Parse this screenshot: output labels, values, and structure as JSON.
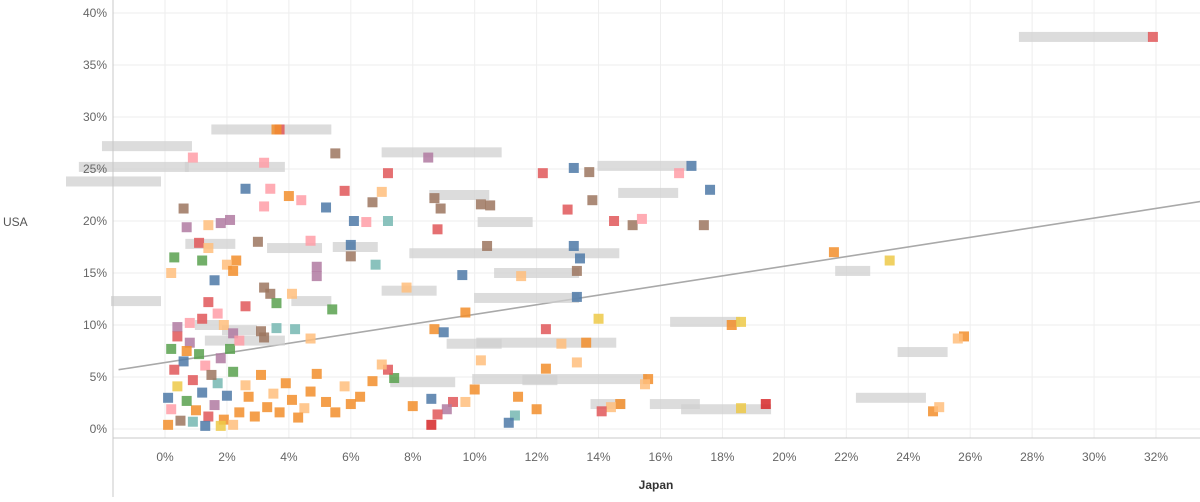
{
  "chart_data": {
    "type": "scatter",
    "xlabel": "Japan",
    "ylabel": "USA",
    "xlim": [
      -0.015,
      0.335
    ],
    "ylim": [
      -0.01,
      0.405
    ],
    "x_ticks": [
      "0%",
      "2%",
      "4%",
      "6%",
      "8%",
      "10%",
      "12%",
      "14%",
      "16%",
      "18%",
      "20%",
      "22%",
      "24%",
      "26%",
      "28%",
      "30%",
      "32%"
    ],
    "y_ticks": [
      "0%",
      "5%",
      "10%",
      "15%",
      "20%",
      "25%",
      "30%",
      "35%",
      "40%"
    ],
    "grid": true,
    "trend_line": {
      "from": [
        -0.015,
        0.057
      ],
      "to": [
        0.335,
        0.219
      ]
    },
    "colors": {
      "blue": "#4e79a7",
      "orange": "#f28e2b",
      "red": "#e15759",
      "teal": "#76b7b2",
      "green": "#59a14f",
      "yellow": "#edc948",
      "purple": "#b07aa1",
      "pink": "#ff9da7",
      "brown": "#9c755f",
      "tan": "#bab0ac",
      "deep_red": "#d62728",
      "light_orange": "#ffbe7d"
    },
    "points": [
      {
        "x": 0.319,
        "y": 0.377,
        "c": "red"
      },
      {
        "x": 0.037,
        "y": 0.288,
        "c": "red"
      },
      {
        "x": 0.036,
        "y": 0.288,
        "c": "orange"
      },
      {
        "x": 0.009,
        "y": 0.261,
        "c": "pink"
      },
      {
        "x": 0.032,
        "y": 0.256,
        "c": "pink"
      },
      {
        "x": 0.055,
        "y": 0.265,
        "c": "brown"
      },
      {
        "x": 0.085,
        "y": 0.261,
        "c": "purple"
      },
      {
        "x": 0.122,
        "y": 0.246,
        "c": "red"
      },
      {
        "x": 0.132,
        "y": 0.251,
        "c": "blue"
      },
      {
        "x": 0.137,
        "y": 0.247,
        "c": "brown"
      },
      {
        "x": 0.17,
        "y": 0.253,
        "c": "blue"
      },
      {
        "x": 0.166,
        "y": 0.246,
        "c": "pink"
      },
      {
        "x": 0.176,
        "y": 0.23,
        "c": "blue"
      },
      {
        "x": 0.072,
        "y": 0.246,
        "c": "red"
      },
      {
        "x": 0.058,
        "y": 0.229,
        "c": "red"
      },
      {
        "x": 0.026,
        "y": 0.231,
        "c": "blue"
      },
      {
        "x": 0.034,
        "y": 0.231,
        "c": "pink"
      },
      {
        "x": 0.04,
        "y": 0.224,
        "c": "orange"
      },
      {
        "x": 0.044,
        "y": 0.22,
        "c": "pink"
      },
      {
        "x": 0.006,
        "y": 0.212,
        "c": "brown"
      },
      {
        "x": 0.032,
        "y": 0.214,
        "c": "pink"
      },
      {
        "x": 0.067,
        "y": 0.218,
        "c": "brown"
      },
      {
        "x": 0.07,
        "y": 0.228,
        "c": "light_orange"
      },
      {
        "x": 0.087,
        "y": 0.222,
        "c": "brown"
      },
      {
        "x": 0.089,
        "y": 0.212,
        "c": "brown"
      },
      {
        "x": 0.102,
        "y": 0.216,
        "c": "brown"
      },
      {
        "x": 0.105,
        "y": 0.215,
        "c": "brown"
      },
      {
        "x": 0.13,
        "y": 0.211,
        "c": "red"
      },
      {
        "x": 0.138,
        "y": 0.22,
        "c": "brown"
      },
      {
        "x": 0.145,
        "y": 0.2,
        "c": "red"
      },
      {
        "x": 0.151,
        "y": 0.196,
        "c": "brown"
      },
      {
        "x": 0.154,
        "y": 0.202,
        "c": "pink"
      },
      {
        "x": 0.174,
        "y": 0.196,
        "c": "brown"
      },
      {
        "x": 0.052,
        "y": 0.213,
        "c": "blue"
      },
      {
        "x": 0.061,
        "y": 0.2,
        "c": "blue"
      },
      {
        "x": 0.065,
        "y": 0.199,
        "c": "pink"
      },
      {
        "x": 0.072,
        "y": 0.2,
        "c": "teal"
      },
      {
        "x": 0.088,
        "y": 0.192,
        "c": "red"
      },
      {
        "x": 0.014,
        "y": 0.196,
        "c": "light_orange"
      },
      {
        "x": 0.018,
        "y": 0.198,
        "c": "purple"
      },
      {
        "x": 0.007,
        "y": 0.194,
        "c": "purple"
      },
      {
        "x": 0.021,
        "y": 0.201,
        "c": "purple"
      },
      {
        "x": 0.03,
        "y": 0.18,
        "c": "brown"
      },
      {
        "x": 0.047,
        "y": 0.181,
        "c": "pink"
      },
      {
        "x": 0.06,
        "y": 0.177,
        "c": "blue"
      },
      {
        "x": 0.06,
        "y": 0.166,
        "c": "brown"
      },
      {
        "x": 0.011,
        "y": 0.179,
        "c": "red"
      },
      {
        "x": 0.014,
        "y": 0.174,
        "c": "light_orange"
      },
      {
        "x": 0.003,
        "y": 0.165,
        "c": "green"
      },
      {
        "x": 0.012,
        "y": 0.162,
        "c": "green"
      },
      {
        "x": 0.023,
        "y": 0.162,
        "c": "orange"
      },
      {
        "x": 0.02,
        "y": 0.158,
        "c": "light_orange"
      },
      {
        "x": 0.022,
        "y": 0.152,
        "c": "orange"
      },
      {
        "x": 0.002,
        "y": 0.15,
        "c": "light_orange"
      },
      {
        "x": 0.016,
        "y": 0.143,
        "c": "blue"
      },
      {
        "x": 0.068,
        "y": 0.158,
        "c": "teal"
      },
      {
        "x": 0.049,
        "y": 0.156,
        "c": "purple"
      },
      {
        "x": 0.049,
        "y": 0.147,
        "c": "purple"
      },
      {
        "x": 0.104,
        "y": 0.176,
        "c": "brown"
      },
      {
        "x": 0.132,
        "y": 0.176,
        "c": "blue"
      },
      {
        "x": 0.134,
        "y": 0.164,
        "c": "blue"
      },
      {
        "x": 0.133,
        "y": 0.152,
        "c": "brown"
      },
      {
        "x": 0.133,
        "y": 0.127,
        "c": "blue"
      },
      {
        "x": 0.115,
        "y": 0.147,
        "c": "light_orange"
      },
      {
        "x": 0.096,
        "y": 0.148,
        "c": "blue"
      },
      {
        "x": 0.032,
        "y": 0.136,
        "c": "brown"
      },
      {
        "x": 0.034,
        "y": 0.13,
        "c": "brown"
      },
      {
        "x": 0.041,
        "y": 0.13,
        "c": "light_orange"
      },
      {
        "x": 0.036,
        "y": 0.121,
        "c": "green"
      },
      {
        "x": 0.054,
        "y": 0.115,
        "c": "green"
      },
      {
        "x": 0.078,
        "y": 0.136,
        "c": "light_orange"
      },
      {
        "x": 0.026,
        "y": 0.118,
        "c": "red"
      },
      {
        "x": 0.014,
        "y": 0.122,
        "c": "red"
      },
      {
        "x": 0.017,
        "y": 0.111,
        "c": "pink"
      },
      {
        "x": 0.012,
        "y": 0.106,
        "c": "red"
      },
      {
        "x": 0.008,
        "y": 0.102,
        "c": "pink"
      },
      {
        "x": 0.004,
        "y": 0.098,
        "c": "purple"
      },
      {
        "x": 0.019,
        "y": 0.1,
        "c": "light_orange"
      },
      {
        "x": 0.022,
        "y": 0.092,
        "c": "purple"
      },
      {
        "x": 0.031,
        "y": 0.094,
        "c": "brown"
      },
      {
        "x": 0.036,
        "y": 0.097,
        "c": "teal"
      },
      {
        "x": 0.042,
        "y": 0.096,
        "c": "teal"
      },
      {
        "x": 0.032,
        "y": 0.088,
        "c": "brown"
      },
      {
        "x": 0.047,
        "y": 0.087,
        "c": "light_orange"
      },
      {
        "x": 0.097,
        "y": 0.112,
        "c": "orange"
      },
      {
        "x": 0.087,
        "y": 0.096,
        "c": "orange"
      },
      {
        "x": 0.09,
        "y": 0.093,
        "c": "blue"
      },
      {
        "x": 0.123,
        "y": 0.096,
        "c": "red"
      },
      {
        "x": 0.14,
        "y": 0.106,
        "c": "yellow"
      },
      {
        "x": 0.183,
        "y": 0.1,
        "c": "orange"
      },
      {
        "x": 0.186,
        "y": 0.103,
        "c": "yellow"
      },
      {
        "x": 0.216,
        "y": 0.17,
        "c": "orange"
      },
      {
        "x": 0.234,
        "y": 0.162,
        "c": "yellow"
      },
      {
        "x": 0.258,
        "y": 0.089,
        "c": "orange"
      },
      {
        "x": 0.256,
        "y": 0.087,
        "c": "light_orange"
      },
      {
        "x": 0.248,
        "y": 0.017,
        "c": "orange"
      },
      {
        "x": 0.25,
        "y": 0.021,
        "c": "light_orange"
      },
      {
        "x": 0.194,
        "y": 0.024,
        "c": "deep_red"
      },
      {
        "x": 0.186,
        "y": 0.02,
        "c": "yellow"
      },
      {
        "x": 0.156,
        "y": 0.048,
        "c": "orange"
      },
      {
        "x": 0.155,
        "y": 0.043,
        "c": "light_orange"
      },
      {
        "x": 0.147,
        "y": 0.024,
        "c": "orange"
      },
      {
        "x": 0.144,
        "y": 0.021,
        "c": "light_orange"
      },
      {
        "x": 0.141,
        "y": 0.017,
        "c": "red"
      },
      {
        "x": 0.133,
        "y": 0.064,
        "c": "light_orange"
      },
      {
        "x": 0.136,
        "y": 0.083,
        "c": "orange"
      },
      {
        "x": 0.128,
        "y": 0.082,
        "c": "light_orange"
      },
      {
        "x": 0.123,
        "y": 0.058,
        "c": "orange"
      },
      {
        "x": 0.12,
        "y": 0.019,
        "c": "orange"
      },
      {
        "x": 0.114,
        "y": 0.031,
        "c": "orange"
      },
      {
        "x": 0.113,
        "y": 0.013,
        "c": "teal"
      },
      {
        "x": 0.111,
        "y": 0.006,
        "c": "blue"
      },
      {
        "x": 0.102,
        "y": 0.066,
        "c": "light_orange"
      },
      {
        "x": 0.1,
        "y": 0.038,
        "c": "orange"
      },
      {
        "x": 0.097,
        "y": 0.026,
        "c": "light_orange"
      },
      {
        "x": 0.093,
        "y": 0.026,
        "c": "red"
      },
      {
        "x": 0.091,
        "y": 0.019,
        "c": "purple"
      },
      {
        "x": 0.088,
        "y": 0.014,
        "c": "red"
      },
      {
        "x": 0.086,
        "y": 0.004,
        "c": "deep_red"
      },
      {
        "x": 0.086,
        "y": 0.029,
        "c": "blue"
      },
      {
        "x": 0.08,
        "y": 0.022,
        "c": "orange"
      },
      {
        "x": 0.074,
        "y": 0.049,
        "c": "green"
      },
      {
        "x": 0.072,
        "y": 0.057,
        "c": "red"
      },
      {
        "x": 0.07,
        "y": 0.062,
        "c": "light_orange"
      },
      {
        "x": 0.067,
        "y": 0.046,
        "c": "orange"
      },
      {
        "x": 0.063,
        "y": 0.031,
        "c": "orange"
      },
      {
        "x": 0.06,
        "y": 0.024,
        "c": "orange"
      },
      {
        "x": 0.058,
        "y": 0.041,
        "c": "light_orange"
      },
      {
        "x": 0.055,
        "y": 0.016,
        "c": "orange"
      },
      {
        "x": 0.052,
        "y": 0.026,
        "c": "orange"
      },
      {
        "x": 0.049,
        "y": 0.053,
        "c": "orange"
      },
      {
        "x": 0.047,
        "y": 0.036,
        "c": "orange"
      },
      {
        "x": 0.045,
        "y": 0.02,
        "c": "light_orange"
      },
      {
        "x": 0.043,
        "y": 0.011,
        "c": "orange"
      },
      {
        "x": 0.041,
        "y": 0.028,
        "c": "orange"
      },
      {
        "x": 0.039,
        "y": 0.044,
        "c": "orange"
      },
      {
        "x": 0.037,
        "y": 0.016,
        "c": "orange"
      },
      {
        "x": 0.035,
        "y": 0.034,
        "c": "light_orange"
      },
      {
        "x": 0.033,
        "y": 0.021,
        "c": "orange"
      },
      {
        "x": 0.031,
        "y": 0.052,
        "c": "orange"
      },
      {
        "x": 0.029,
        "y": 0.012,
        "c": "orange"
      },
      {
        "x": 0.027,
        "y": 0.031,
        "c": "orange"
      },
      {
        "x": 0.026,
        "y": 0.042,
        "c": "light_orange"
      },
      {
        "x": 0.024,
        "y": 0.016,
        "c": "orange"
      },
      {
        "x": 0.022,
        "y": 0.055,
        "c": "green"
      },
      {
        "x": 0.02,
        "y": 0.032,
        "c": "blue"
      },
      {
        "x": 0.019,
        "y": 0.009,
        "c": "orange"
      },
      {
        "x": 0.017,
        "y": 0.044,
        "c": "teal"
      },
      {
        "x": 0.016,
        "y": 0.023,
        "c": "purple"
      },
      {
        "x": 0.014,
        "y": 0.012,
        "c": "red"
      },
      {
        "x": 0.013,
        "y": 0.061,
        "c": "pink"
      },
      {
        "x": 0.012,
        "y": 0.035,
        "c": "blue"
      },
      {
        "x": 0.011,
        "y": 0.072,
        "c": "green"
      },
      {
        "x": 0.01,
        "y": 0.018,
        "c": "orange"
      },
      {
        "x": 0.009,
        "y": 0.047,
        "c": "red"
      },
      {
        "x": 0.008,
        "y": 0.083,
        "c": "purple"
      },
      {
        "x": 0.007,
        "y": 0.027,
        "c": "green"
      },
      {
        "x": 0.006,
        "y": 0.065,
        "c": "blue"
      },
      {
        "x": 0.005,
        "y": 0.008,
        "c": "brown"
      },
      {
        "x": 0.004,
        "y": 0.041,
        "c": "yellow"
      },
      {
        "x": 0.003,
        "y": 0.057,
        "c": "red"
      },
      {
        "x": 0.002,
        "y": 0.019,
        "c": "pink"
      },
      {
        "x": 0.002,
        "y": 0.077,
        "c": "green"
      },
      {
        "x": 0.001,
        "y": 0.03,
        "c": "blue"
      },
      {
        "x": 0.001,
        "y": 0.004,
        "c": "orange"
      },
      {
        "x": 0.013,
        "y": 0.003,
        "c": "blue"
      },
      {
        "x": 0.018,
        "y": 0.003,
        "c": "yellow"
      },
      {
        "x": 0.022,
        "y": 0.004,
        "c": "light_orange"
      },
      {
        "x": 0.009,
        "y": 0.007,
        "c": "teal"
      },
      {
        "x": 0.015,
        "y": 0.052,
        "c": "brown"
      },
      {
        "x": 0.018,
        "y": 0.068,
        "c": "purple"
      },
      {
        "x": 0.021,
        "y": 0.077,
        "c": "green"
      },
      {
        "x": 0.024,
        "y": 0.085,
        "c": "pink"
      },
      {
        "x": 0.004,
        "y": 0.089,
        "c": "red"
      },
      {
        "x": 0.007,
        "y": 0.075,
        "c": "orange"
      }
    ],
    "labeled_points": [
      {
        "x": 0.319,
        "y": 0.377,
        "w": 130
      },
      {
        "x": 0.036,
        "y": 0.288,
        "w": 0
      },
      {
        "x": 0.055,
        "y": 0.288,
        "w": 120
      },
      {
        "x": 0.01,
        "y": 0.272,
        "w": 90
      },
      {
        "x": 0.009,
        "y": 0.252,
        "w": 110
      },
      {
        "x": 0.0,
        "y": 0.238,
        "w": 95
      },
      {
        "x": 0.04,
        "y": 0.252,
        "w": 100
      },
      {
        "x": 0.11,
        "y": 0.266,
        "w": 120
      },
      {
        "x": 0.17,
        "y": 0.253,
        "w": 90
      },
      {
        "x": 0.167,
        "y": 0.227,
        "w": 60
      },
      {
        "x": 0.106,
        "y": 0.225,
        "w": 60
      },
      {
        "x": 0.12,
        "y": 0.199,
        "w": 55
      },
      {
        "x": 0.148,
        "y": 0.169,
        "w": 210
      },
      {
        "x": 0.229,
        "y": 0.152,
        "w": 35
      },
      {
        "x": 0.052,
        "y": 0.174,
        "w": 55
      },
      {
        "x": 0.024,
        "y": 0.178,
        "w": 50
      },
      {
        "x": 0.07,
        "y": 0.175,
        "w": 45
      },
      {
        "x": 0.135,
        "y": 0.15,
        "w": 85
      },
      {
        "x": 0.135,
        "y": 0.126,
        "w": 105
      },
      {
        "x": 0.089,
        "y": 0.133,
        "w": 55
      },
      {
        "x": 0.0,
        "y": 0.123,
        "w": 50
      },
      {
        "x": 0.055,
        "y": 0.123,
        "w": 40
      },
      {
        "x": 0.187,
        "y": 0.103,
        "w": 70
      },
      {
        "x": 0.147,
        "y": 0.083,
        "w": 140
      },
      {
        "x": 0.11,
        "y": 0.082,
        "w": 55
      },
      {
        "x": 0.254,
        "y": 0.074,
        "w": 50
      },
      {
        "x": 0.157,
        "y": 0.048,
        "w": 175
      },
      {
        "x": 0.095,
        "y": 0.045,
        "w": 65
      },
      {
        "x": 0.128,
        "y": 0.047,
        "w": 35
      },
      {
        "x": 0.247,
        "y": 0.03,
        "w": 70
      },
      {
        "x": 0.15,
        "y": 0.024,
        "w": 35
      },
      {
        "x": 0.174,
        "y": 0.024,
        "w": 50
      },
      {
        "x": 0.197,
        "y": 0.019,
        "w": 90
      },
      {
        "x": 0.031,
        "y": 0.095,
        "w": 35
      },
      {
        "x": 0.04,
        "y": 0.085,
        "w": 80
      },
      {
        "x": 0.019,
        "y": 0.1,
        "w": 25
      }
    ]
  }
}
